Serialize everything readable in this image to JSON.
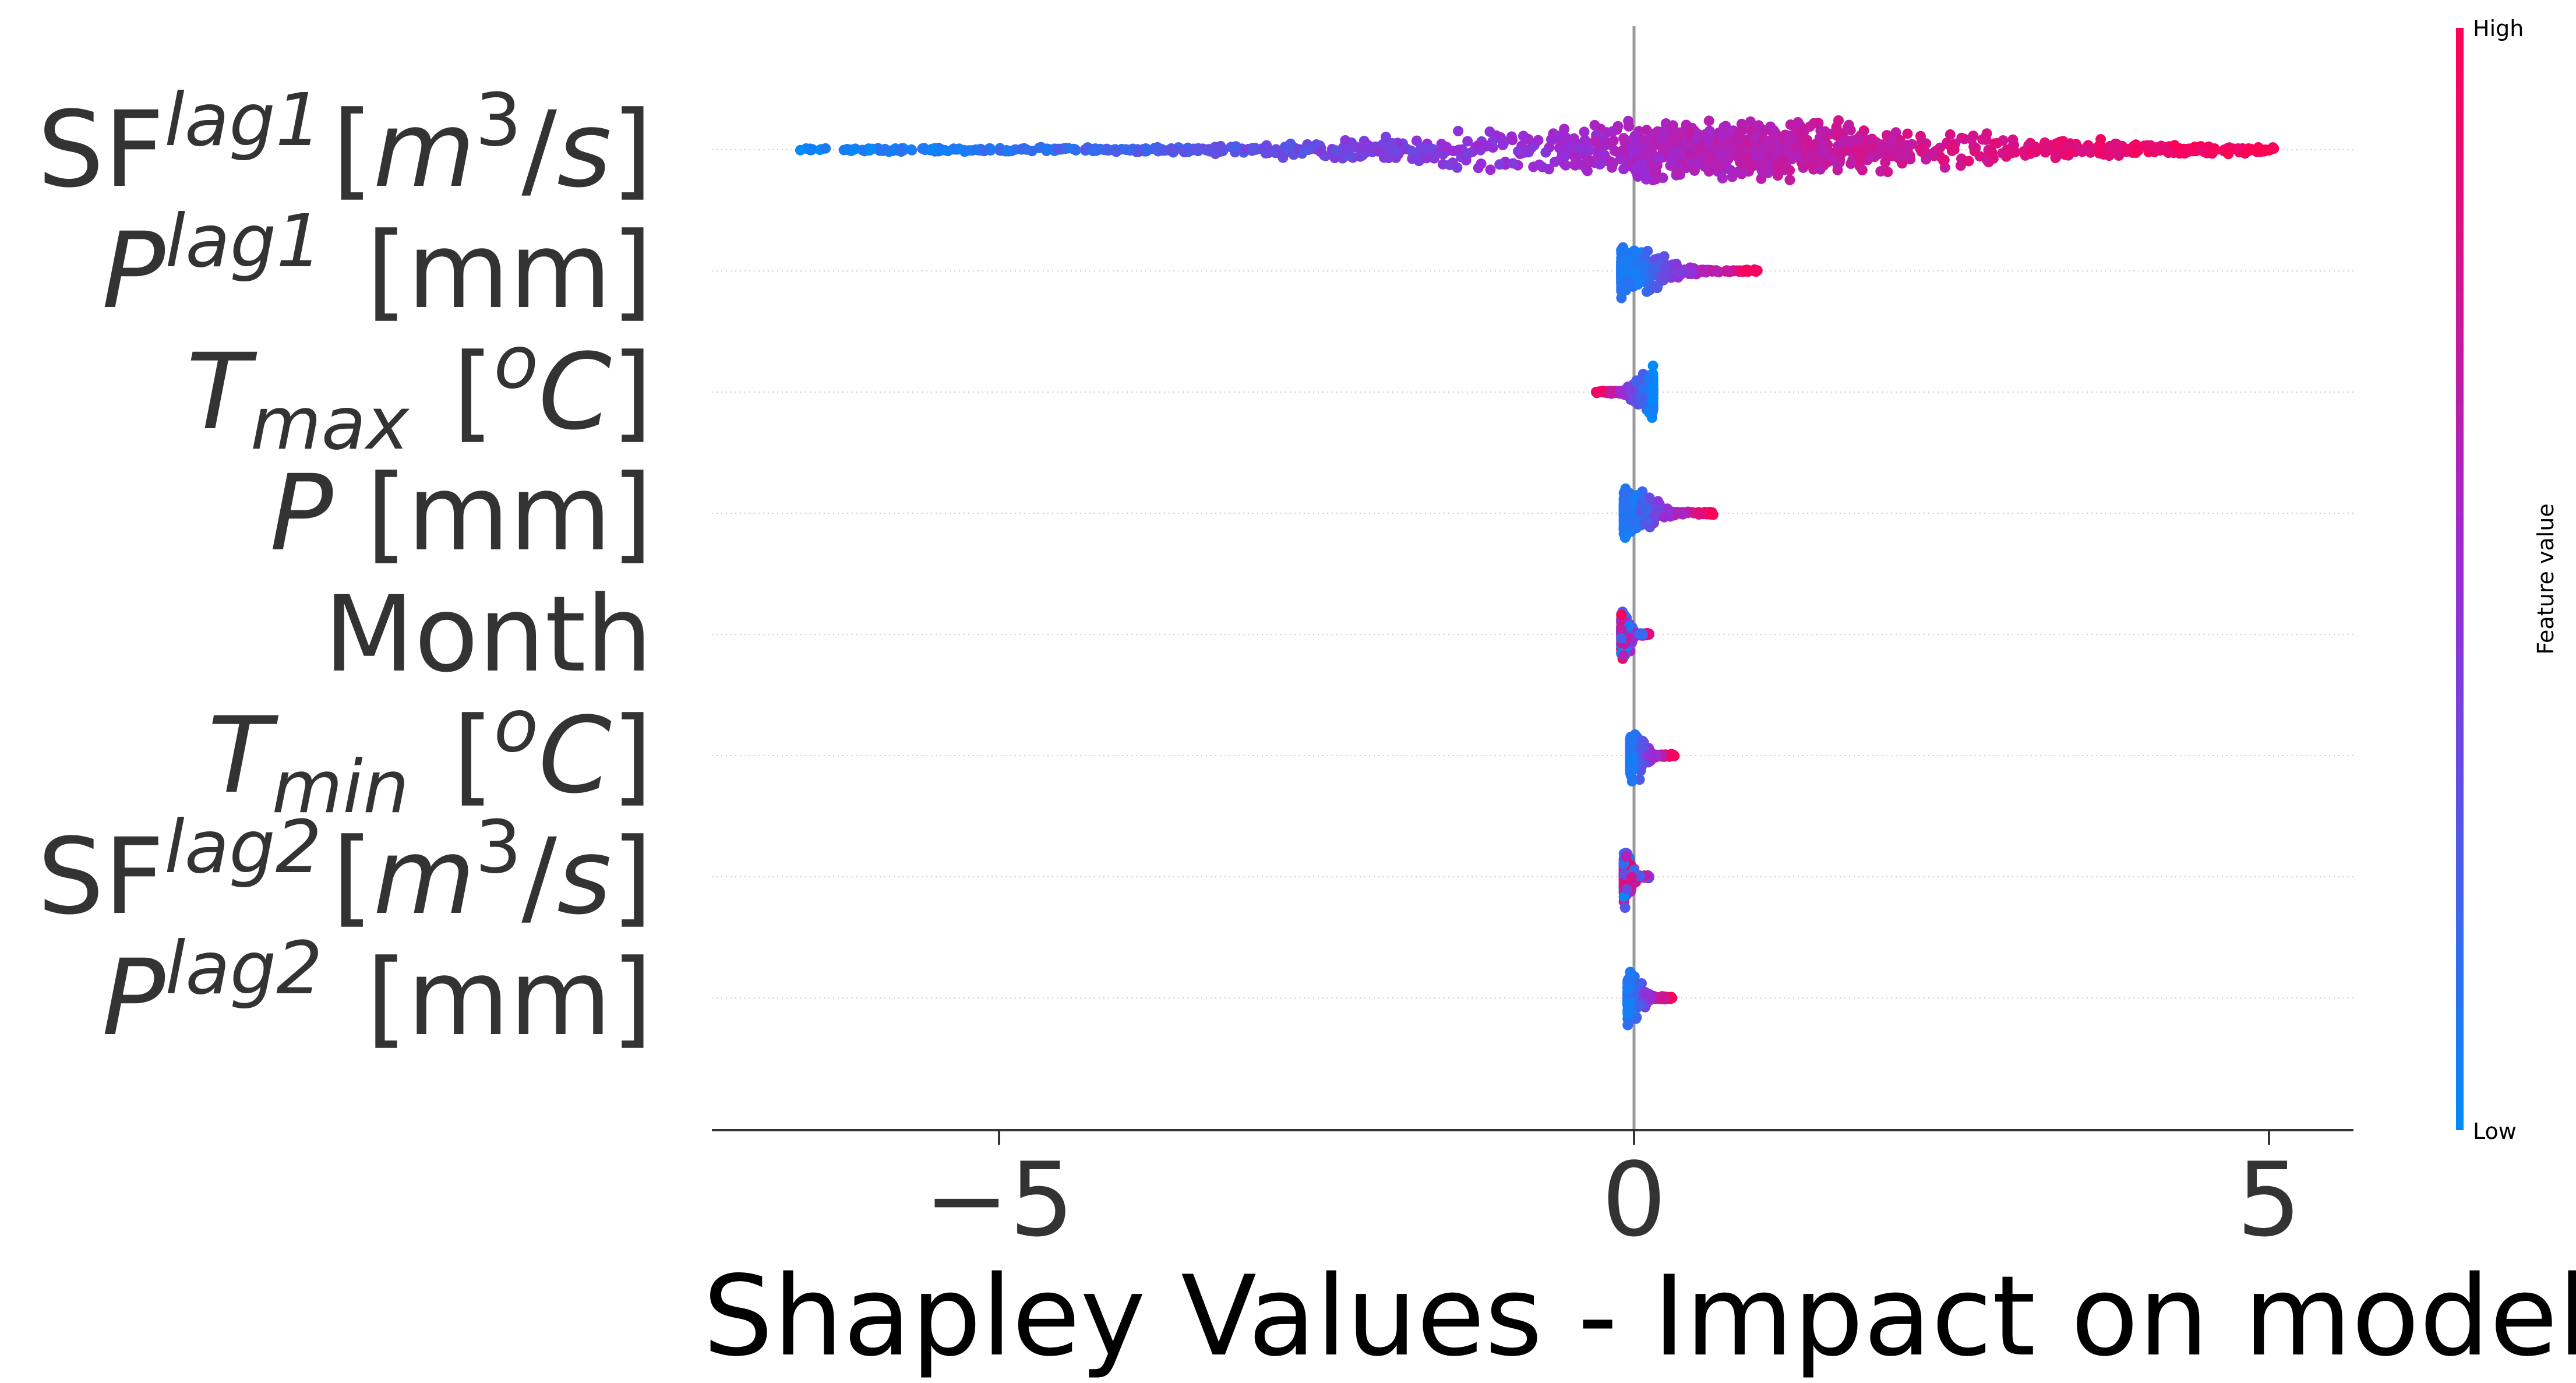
{
  "chart_data": {
    "type": "scatter",
    "subtype": "shap-beeswarm-summary",
    "xlabel": "Shapley Values - Impact on model",
    "xticks": [
      -5,
      0,
      5
    ],
    "xtick_labels": [
      "−5",
      "0",
      "5"
    ],
    "xlim": [
      -7.3,
      5.6
    ],
    "features": [
      {
        "base": "SF",
        "sup": "lag1",
        "unit_italic": "m",
        "unit_sup": "3",
        "unit_tail": "/s",
        "min": -6.6,
        "max": 5.05,
        "pos_color": "high",
        "spread": "wide"
      },
      {
        "base": "P",
        "sup": "lag1",
        "unit": "[mm]",
        "min": -0.1,
        "max": 0.98,
        "pos_color": "high",
        "spread": "narrow"
      },
      {
        "base": "T",
        "sub": "max",
        "unit_pre": "[",
        "unit_sup": "o",
        "unit_tail": "C]",
        "min": -0.3,
        "max": 0.15,
        "pos_color": "low",
        "spread": "narrow"
      },
      {
        "base": "P",
        "unit": "[mm]",
        "min": -0.08,
        "max": 0.65,
        "pos_color": "high",
        "spread": "narrow"
      },
      {
        "plain": "Month",
        "min": -0.1,
        "max": 0.12,
        "pos_color": "mixed",
        "spread": "narrow"
      },
      {
        "base": "T",
        "sub": "min",
        "unit_pre": "[",
        "unit_sup": "o",
        "unit_tail": "C]",
        "min": -0.03,
        "max": 0.32,
        "pos_color": "high",
        "spread": "narrow"
      },
      {
        "base": "SF",
        "sup": "lag2",
        "unit_italic": "m",
        "unit_sup": "3",
        "unit_tail": "/s",
        "min": -0.08,
        "max": 0.12,
        "pos_color": "mixed",
        "spread": "narrow"
      },
      {
        "base": "P",
        "sup": "lag2",
        "unit": "[mm]",
        "min": -0.05,
        "max": 0.3,
        "pos_color": "high",
        "spread": "narrow"
      }
    ],
    "colorbar": {
      "label": "Feature value",
      "high_label": "High",
      "low_label": "Low",
      "low_color": "#008bfb",
      "mid_color": "#9a2bd6",
      "high_color": "#ff0052"
    },
    "zero_line_color": "#999999",
    "grid": "dotted-horizontal"
  }
}
